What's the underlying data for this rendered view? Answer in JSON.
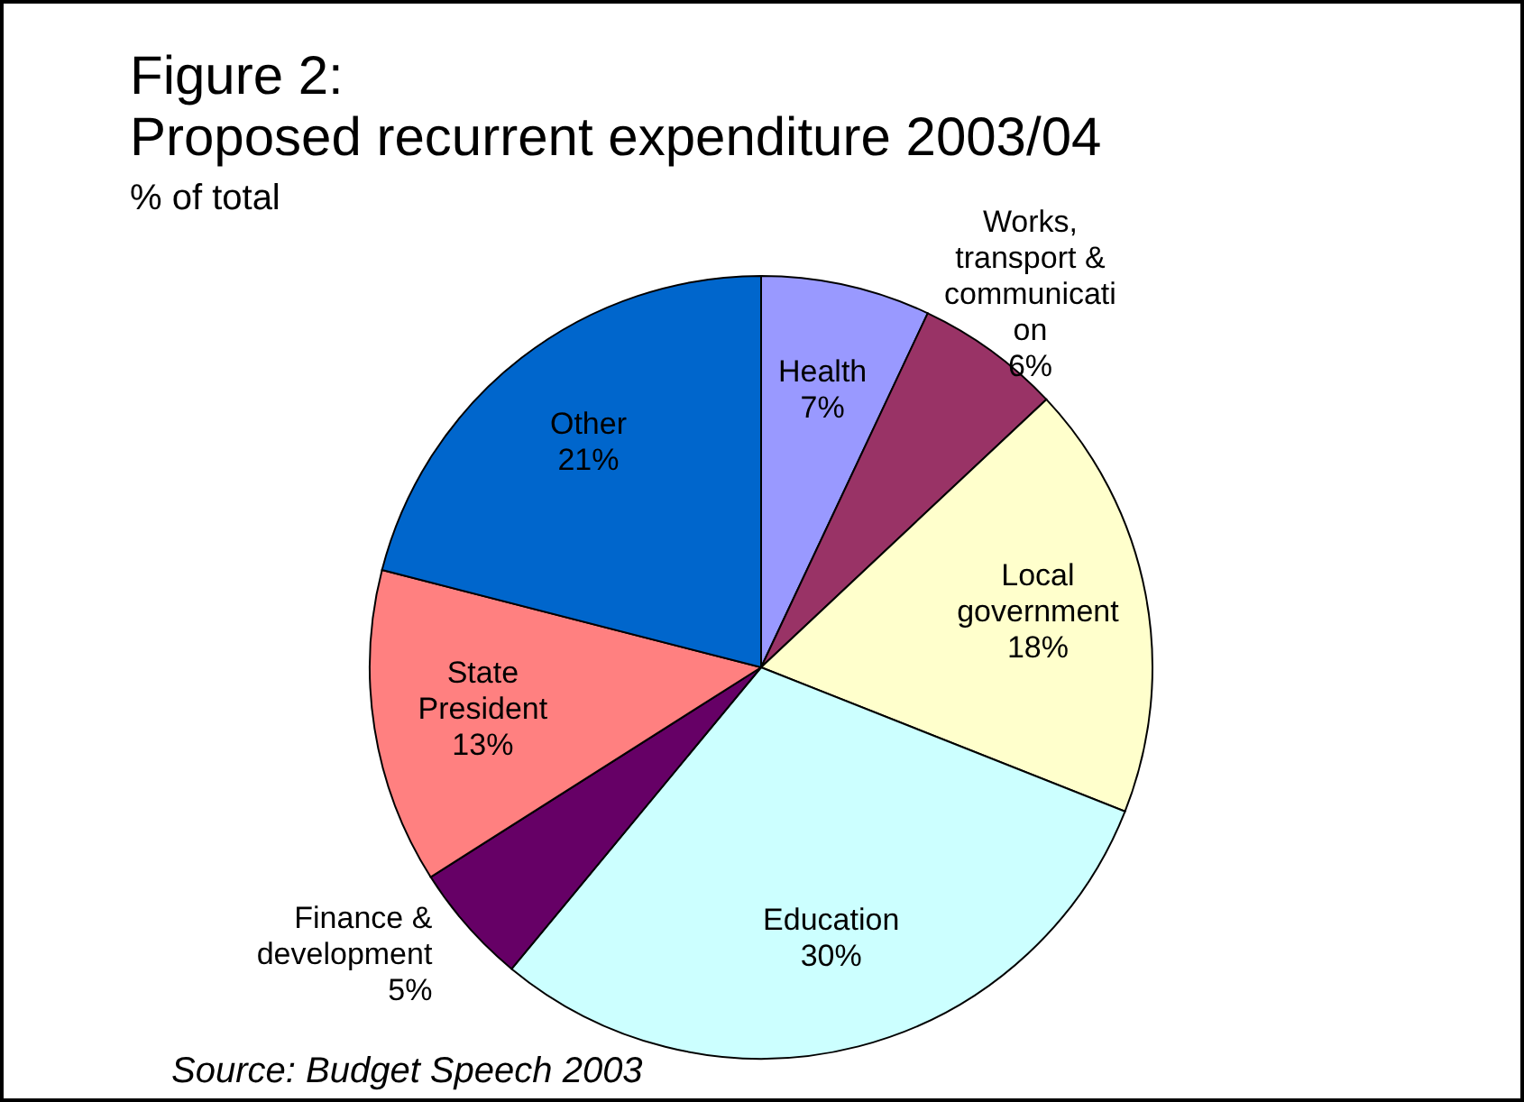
{
  "chart_data": {
    "type": "pie",
    "title": "Figure 2:\nProposed recurrent expenditure 2003/04",
    "subtitle": "% of total",
    "categories": [
      "Health",
      "Works, transport & communication",
      "Local government",
      "Education",
      "Finance & development",
      "State President",
      "Other"
    ],
    "values": [
      7,
      6,
      18,
      30,
      5,
      13,
      21
    ],
    "colors": [
      "#9999ff",
      "#993366",
      "#ffffcc",
      "#ccffff",
      "#660066",
      "#ff8080",
      "#0066cc"
    ],
    "value_labels": [
      "7%",
      "6%",
      "18%",
      "30%",
      "5%",
      "13%",
      "21%"
    ],
    "annotations": [
      "Source: Budget Speech 2003"
    ]
  }
}
